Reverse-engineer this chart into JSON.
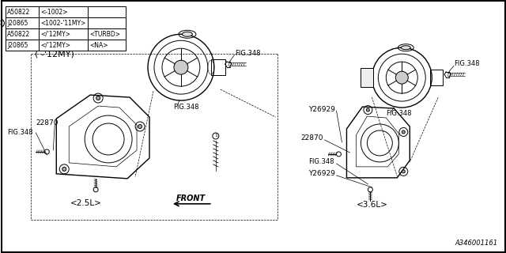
{
  "background_color": "#ffffff",
  "table": {
    "rows": [
      [
        "A50822",
        "<-1002>",
        ""
      ],
      [
        "J20865",
        "<1002-'11MY>",
        ""
      ],
      [
        "A50822",
        "</'12MY>",
        "<TURBD>"
      ],
      [
        "J20865",
        "</'12MY>",
        "<NA>"
      ]
    ]
  },
  "labels": {
    "model_year": "( -'12MY)",
    "front": "FRONT",
    "size_25": "<2.5L>",
    "size_36": "<3.6L>",
    "fig348": "FIG.348",
    "part_22870": "22870",
    "part_y26929": "Y26929",
    "part_num": "A346001161"
  }
}
